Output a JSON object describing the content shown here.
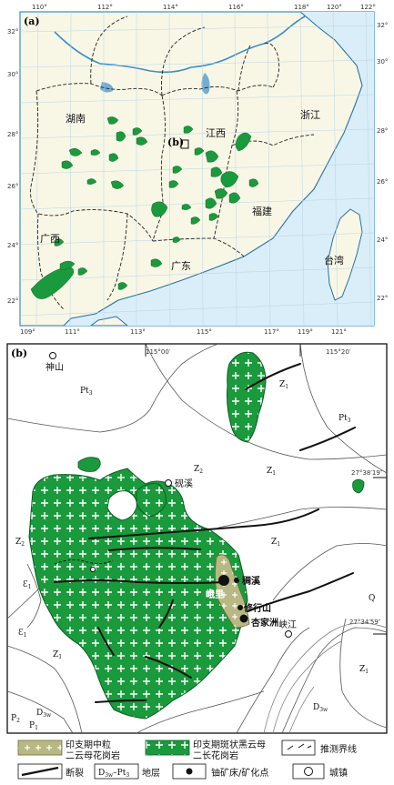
{
  "map_a": {
    "panel_label": "(a)",
    "inset_label": "(b)",
    "top_longitudes": [
      "110°",
      "112°",
      "114°",
      "116°",
      "118°",
      "120°",
      "122°"
    ],
    "bottom_longitudes": [
      "109°",
      "111°",
      "113°",
      "115°",
      "117°",
      "119°",
      "121°"
    ],
    "left_latitudes": [
      "32°",
      "30°",
      "28°",
      "26°",
      "24°",
      "22°"
    ],
    "right_latitudes": [
      "32°",
      "30°",
      "28°",
      "26°",
      "24°",
      "22°"
    ],
    "provinces": {
      "hunan": "湖南",
      "jiangxi": "江西",
      "zhejiang": "浙江",
      "fujian": "福建",
      "guangxi": "广西",
      "guangdong": "广东",
      "taiwan": "台湾"
    }
  },
  "map_b": {
    "panel_label": "(b)",
    "lon_1": "115°00′",
    "lon_2": "115°20′",
    "lat_1": "27°38′19″",
    "lat_2": "27°34′59″",
    "towns": {
      "shenshan": "神山",
      "jianxi": "砚溪",
      "xiajiang": "峡江"
    },
    "deposits": {
      "chouxi": "稠溪",
      "emei": "峨里",
      "xiuxingshan": "修行山",
      "xingjiazhou": "杏家洲"
    },
    "strata": {
      "pt3": "Pt₃",
      "z1": "Z₁",
      "z2": "Z₂",
      "e1": "Ɛ₁",
      "q": "Q",
      "p2": "P₂",
      "p1": "P₁"
    },
    "strata_parts": {
      "pt": "Pt",
      "z": "Z",
      "e": "Ɛ",
      "d": "D",
      "p": "P",
      "s1": "1",
      "s2": "2",
      "s3": "3",
      "s3w": "3w"
    }
  },
  "legend": {
    "item1_line1": "印支期中粒",
    "item1_line2": "二云母花岗岩",
    "item2_line1": "印支期斑状黑云母",
    "item2_line2": "二长花岗岩",
    "item3": "推测界线",
    "item4": "断裂",
    "item5_a": "D",
    "item5_b": "3w",
    "item5_c": "–",
    "item5_d": "Pt",
    "item5_e": "3",
    "item5_label": "地层",
    "item6": "铀矿床/矿化点",
    "item7": "城镇"
  },
  "colors": {
    "granite_green": "#1a9a3c",
    "granite_tan": "#b8b882",
    "land": "#f8f7e6",
    "sea": "#d9eef8",
    "frame_blue": "#3a8fc8"
  }
}
